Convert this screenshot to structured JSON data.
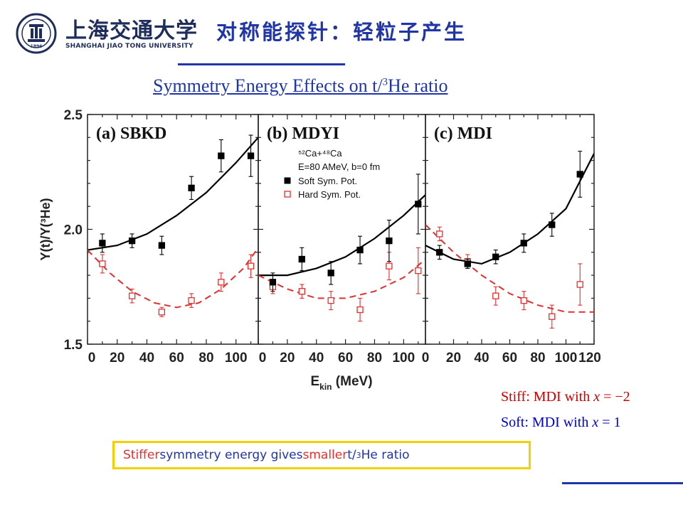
{
  "header": {
    "school_cn": "上海交通大学",
    "school_en": "SHANGHAI JIAO TONG UNIVERSITY",
    "logo_year": "1896",
    "slide_title": "对称能探针：轻粒子产生"
  },
  "subtitle": {
    "prefix": "Symmetry Energy Effects on t/",
    "sup": "3",
    "suffix": "He ratio "
  },
  "colors": {
    "title": "#1f35a8",
    "soft": "#000000",
    "hard": "#e03030",
    "highlight_box": "#f5d000"
  },
  "chart_data": {
    "type": "scatter",
    "ylabel": "Y(t)/Y(³He)",
    "xlabel_main": "E",
    "xlabel_sub": "kin",
    "xlabel_unit": " (MeV)",
    "ylim": [
      1.5,
      2.5
    ],
    "yticks": [
      "1.5",
      "2.0",
      "2.5"
    ],
    "legend": {
      "reaction": "⁵²Ca+⁴⁸Ca",
      "conditions": "E=80 AMeV, b=0 fm",
      "soft": "Soft Sym. Pot.",
      "hard": "Hard Sym. Pot."
    },
    "panels": [
      {
        "label": "(a) SBKD",
        "xlim": [
          0,
          115
        ],
        "xticks": [
          "0",
          "20",
          "40",
          "60",
          "80",
          "100"
        ],
        "soft_points": [
          [
            10,
            1.94,
            0.04
          ],
          [
            30,
            1.95,
            0.03
          ],
          [
            50,
            1.93,
            0.04
          ],
          [
            70,
            2.18,
            0.05
          ],
          [
            90,
            2.32,
            0.07
          ],
          [
            110,
            2.32,
            0.09
          ]
        ],
        "hard_points": [
          [
            10,
            1.85,
            0.04
          ],
          [
            30,
            1.71,
            0.03
          ],
          [
            50,
            1.64,
            0.02
          ],
          [
            70,
            1.69,
            0.03
          ],
          [
            90,
            1.77,
            0.04
          ],
          [
            110,
            1.84,
            0.05
          ]
        ],
        "soft_curve": [
          [
            0,
            1.91
          ],
          [
            20,
            1.93
          ],
          [
            40,
            1.98
          ],
          [
            60,
            2.06
          ],
          [
            80,
            2.16
          ],
          [
            100,
            2.29
          ],
          [
            115,
            2.4
          ]
        ],
        "hard_curve": [
          [
            0,
            1.91
          ],
          [
            15,
            1.81
          ],
          [
            30,
            1.73
          ],
          [
            45,
            1.68
          ],
          [
            60,
            1.66
          ],
          [
            75,
            1.68
          ],
          [
            90,
            1.74
          ],
          [
            105,
            1.83
          ],
          [
            115,
            1.92
          ]
        ]
      },
      {
        "label": "(b) MDYI",
        "xlim": [
          0,
          115
        ],
        "xticks": [
          "0",
          "20",
          "40",
          "60",
          "80",
          "100"
        ],
        "soft_points": [
          [
            10,
            1.77,
            0.04
          ],
          [
            30,
            1.87,
            0.05
          ],
          [
            50,
            1.81,
            0.05
          ],
          [
            70,
            1.91,
            0.06
          ],
          [
            90,
            1.95,
            0.09
          ],
          [
            110,
            2.11,
            0.13
          ]
        ],
        "hard_points": [
          [
            10,
            1.75,
            0.03
          ],
          [
            30,
            1.73,
            0.03
          ],
          [
            50,
            1.69,
            0.04
          ],
          [
            70,
            1.65,
            0.05
          ],
          [
            90,
            1.84,
            0.06
          ],
          [
            110,
            1.82,
            0.1
          ]
        ],
        "soft_curve": [
          [
            0,
            1.8
          ],
          [
            20,
            1.8
          ],
          [
            40,
            1.83
          ],
          [
            60,
            1.88
          ],
          [
            80,
            1.96
          ],
          [
            100,
            2.06
          ],
          [
            115,
            2.15
          ]
        ],
        "hard_curve": [
          [
            0,
            1.8
          ],
          [
            20,
            1.74
          ],
          [
            40,
            1.7
          ],
          [
            60,
            1.7
          ],
          [
            80,
            1.73
          ],
          [
            100,
            1.79
          ],
          [
            115,
            1.87
          ]
        ]
      },
      {
        "label": "(c) MDI",
        "xlim": [
          0,
          120
        ],
        "xticks": [
          "0",
          "20",
          "40",
          "60",
          "80",
          "100",
          "120"
        ],
        "soft_points": [
          [
            10,
            1.9,
            0.03
          ],
          [
            30,
            1.85,
            0.02
          ],
          [
            50,
            1.88,
            0.03
          ],
          [
            70,
            1.94,
            0.04
          ],
          [
            90,
            2.02,
            0.05
          ],
          [
            110,
            2.24,
            0.1
          ]
        ],
        "hard_points": [
          [
            10,
            1.98,
            0.03
          ],
          [
            30,
            1.86,
            0.03
          ],
          [
            50,
            1.71,
            0.04
          ],
          [
            70,
            1.69,
            0.04
          ],
          [
            90,
            1.62,
            0.05
          ],
          [
            110,
            1.76,
            0.09
          ]
        ],
        "soft_curve": [
          [
            0,
            1.93
          ],
          [
            20,
            1.87
          ],
          [
            40,
            1.85
          ],
          [
            60,
            1.9
          ],
          [
            80,
            1.98
          ],
          [
            100,
            2.09
          ],
          [
            120,
            2.33
          ]
        ],
        "hard_curve": [
          [
            0,
            2.02
          ],
          [
            20,
            1.9
          ],
          [
            40,
            1.8
          ],
          [
            60,
            1.72
          ],
          [
            80,
            1.67
          ],
          [
            100,
            1.64
          ],
          [
            120,
            1.64
          ]
        ]
      }
    ]
  },
  "legend_box": {
    "stiff_prefix": "Stiff: MDI with ",
    "stiff_var": "x",
    "stiff_value": " = −2",
    "soft_prefix": "Soft: MDI with ",
    "soft_var": "x",
    "soft_value": " = 1"
  },
  "conclusion": {
    "word1": "Stiffer",
    "mid1": " symmetry energy gives ",
    "word2": "smaller",
    "mid2": " t/",
    "sup": "3",
    "end": "He ratio"
  }
}
